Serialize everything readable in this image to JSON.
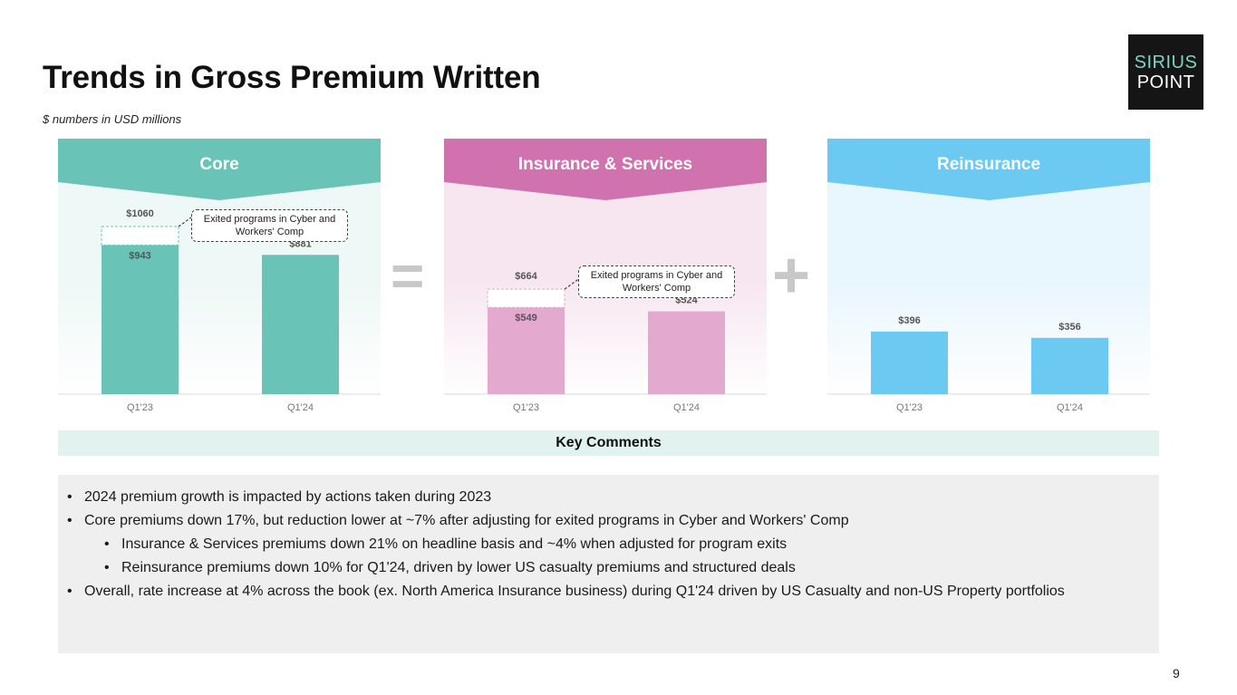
{
  "header": {
    "title": "Trends in Gross Premium Written",
    "subtitle": "$ numbers in USD millions"
  },
  "logo": {
    "line1": "SIRIUS",
    "line2": "POINT"
  },
  "colors": {
    "core": "#69c3b7",
    "core_bg": "#eef8f6",
    "ins": "#cf72ae",
    "ins_bar": "#e4a9cf",
    "ins_bg": "#f7e6f0",
    "re": "#6cc9f2",
    "re_bg": "#e8f6fd",
    "operator": "#c8c8c8"
  },
  "operators": {
    "equals": "=",
    "plus": "+"
  },
  "chart_data": [
    {
      "type": "bar",
      "title": "Core",
      "categories": [
        "Q1'23",
        "Q1'24"
      ],
      "values": [
        943,
        881
      ],
      "value_labels": [
        "$943",
        "$881"
      ],
      "adjusted": {
        "category": "Q1'23",
        "value": 1060,
        "label": "$1060"
      },
      "callout": "Exited programs in Cyber and Workers' Comp"
    },
    {
      "type": "bar",
      "title": "Insurance & Services",
      "categories": [
        "Q1'23",
        "Q1'24"
      ],
      "values": [
        549,
        524
      ],
      "value_labels": [
        "$549",
        "$524"
      ],
      "adjusted": {
        "category": "Q1'23",
        "value": 664,
        "label": "$664"
      },
      "callout": "Exited programs in Cyber and Workers' Comp"
    },
    {
      "type": "bar",
      "title": "Reinsurance",
      "categories": [
        "Q1'23",
        "Q1'24"
      ],
      "values": [
        396,
        356
      ],
      "value_labels": [
        "$396",
        "$356"
      ]
    }
  ],
  "key_comments": {
    "header": "Key Comments",
    "items": [
      {
        "text": "2024 premium growth is impacted by actions taken during 2023",
        "level": 0
      },
      {
        "text": "Core premiums down 17%, but reduction lower at ~7% after adjusting for exited programs in Cyber and Workers' Comp",
        "level": 0
      },
      {
        "text": "Insurance & Services premiums down 21% on headline basis and ~4% when adjusted for program exits",
        "level": 1
      },
      {
        "text": "Reinsurance premiums down 10% for Q1'24, driven by lower US casualty premiums and structured deals",
        "level": 1
      },
      {
        "text": "Overall, rate increase at 4% across the book (ex. North America Insurance business) during Q1'24 driven by US Casualty and non-US Property portfolios",
        "level": 0
      }
    ]
  },
  "page_number": "9"
}
